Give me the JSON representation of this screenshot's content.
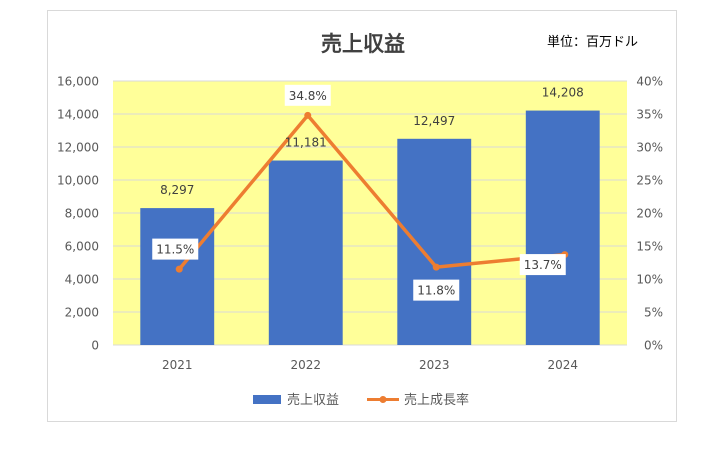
{
  "colors": {
    "plot_bg": "#FFFF99",
    "bar": "#4472C4",
    "line": "#ED7D31",
    "border": "#D9D9D9",
    "grid": "#D9D9D9",
    "text": "#595959",
    "title": "#404040"
  },
  "chart_data": {
    "type": "bar",
    "title": "売上収益",
    "unit_note": "単位：百万ドル",
    "categories": [
      "2021",
      "2022",
      "2023",
      "2024"
    ],
    "series": [
      {
        "name": "売上収益",
        "type": "bar",
        "axis": "left",
        "values": [
          8297,
          11181,
          12497,
          14208
        ],
        "labels": [
          "8,297",
          "11,181",
          "12,497",
          "14,208"
        ]
      },
      {
        "name": "売上成長率",
        "type": "line",
        "axis": "right",
        "values": [
          11.5,
          34.8,
          11.8,
          13.7
        ],
        "labels": [
          "11.5%",
          "34.8%",
          "11.8%",
          "13.7%"
        ]
      }
    ],
    "y_left": {
      "min": 0,
      "max": 16000,
      "step": 2000,
      "tick_labels": [
        "0",
        "2,000",
        "4,000",
        "6,000",
        "8,000",
        "10,000",
        "12,000",
        "14,000",
        "16,000"
      ]
    },
    "y_right": {
      "min": 0,
      "max": 40,
      "step": 5,
      "tick_labels": [
        "0%",
        "5%",
        "10%",
        "15%",
        "20%",
        "25%",
        "30%",
        "35%",
        "40%"
      ]
    },
    "grid": true,
    "legend_position": "bottom"
  }
}
